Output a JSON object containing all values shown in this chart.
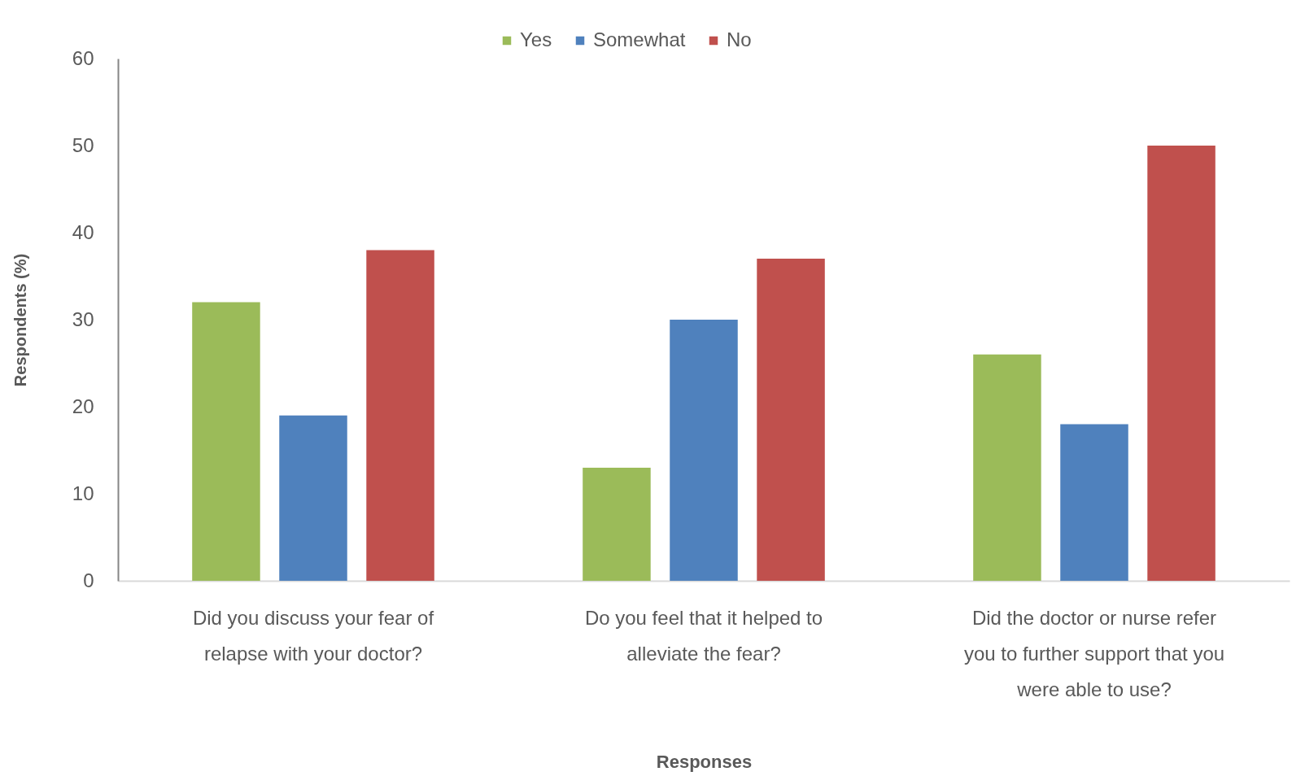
{
  "chart_data": {
    "type": "bar",
    "xlabel": "Responses",
    "ylabel": "Respondents (%)",
    "categories": [
      "Did you discuss your fear of relapse with your doctor?",
      "Do you feel that it helped to alleviate the fear?",
      "Did the doctor or nurse refer you to further support that you were able to use?"
    ],
    "series": [
      {
        "name": "Yes",
        "color": "#9bbb59",
        "values": [
          32,
          13,
          26
        ]
      },
      {
        "name": "Somewhat",
        "color": "#4f81bd",
        "values": [
          19,
          30,
          18
        ]
      },
      {
        "name": "No",
        "color": "#c0504d",
        "values": [
          38,
          37,
          50
        ]
      }
    ],
    "ylim": [
      0,
      60
    ],
    "yticks": [
      0,
      10,
      20,
      30,
      40,
      50,
      60
    ],
    "grid": false,
    "legend": "top"
  }
}
